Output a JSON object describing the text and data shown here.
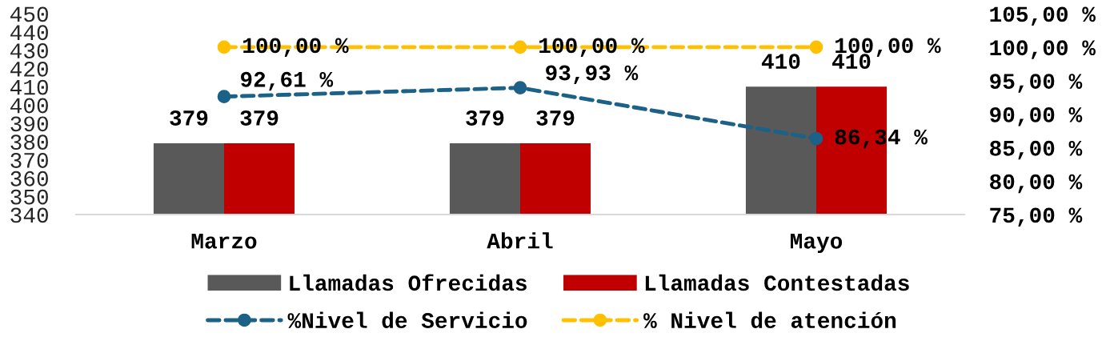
{
  "chart_data": {
    "type": "bar",
    "categories": [
      "Marzo",
      "Abril",
      "Mayo"
    ],
    "series": [
      {
        "name": "Llamadas Ofrecidas",
        "color": "#595959",
        "values": [
          379,
          379,
          410
        ],
        "value_labels": [
          "379",
          "379",
          "410"
        ]
      },
      {
        "name": "Llamadas Contestadas",
        "color": "#c00000",
        "values": [
          379,
          379,
          410
        ],
        "value_labels": [
          "379",
          "379",
          "410"
        ]
      },
      {
        "name": "%Nivel de Servicio",
        "type": "line",
        "axis": "y2",
        "color": "#1c6187",
        "values": [
          92.61,
          93.93,
          86.34
        ],
        "value_labels": [
          "92,61 %",
          "93,93 %",
          "86,34 %"
        ]
      },
      {
        "name": "% Nivel de atención",
        "type": "line",
        "axis": "y2",
        "color": "#ffc000",
        "values": [
          100,
          100,
          100
        ],
        "value_labels": [
          "100,00 %",
          "100,00 %",
          "100,00 %"
        ]
      }
    ],
    "ylim": [
      340,
      450
    ],
    "yticks": [
      340,
      350,
      360,
      370,
      380,
      390,
      400,
      410,
      420,
      430,
      440,
      450
    ],
    "y2lim": [
      75,
      105
    ],
    "y2ticks": [
      {
        "value": 75,
        "label": "75,00 %"
      },
      {
        "value": 80,
        "label": "80,00 %"
      },
      {
        "value": 85,
        "label": "85,00 %"
      },
      {
        "value": 90,
        "label": "90,00 %"
      },
      {
        "value": 95,
        "label": "95,00 %"
      },
      {
        "value": 100,
        "label": "100,00 %"
      },
      {
        "value": 105,
        "label": "105,00 %"
      }
    ],
    "marker": "circle",
    "line_style": "dashed",
    "legend": "bottom"
  }
}
